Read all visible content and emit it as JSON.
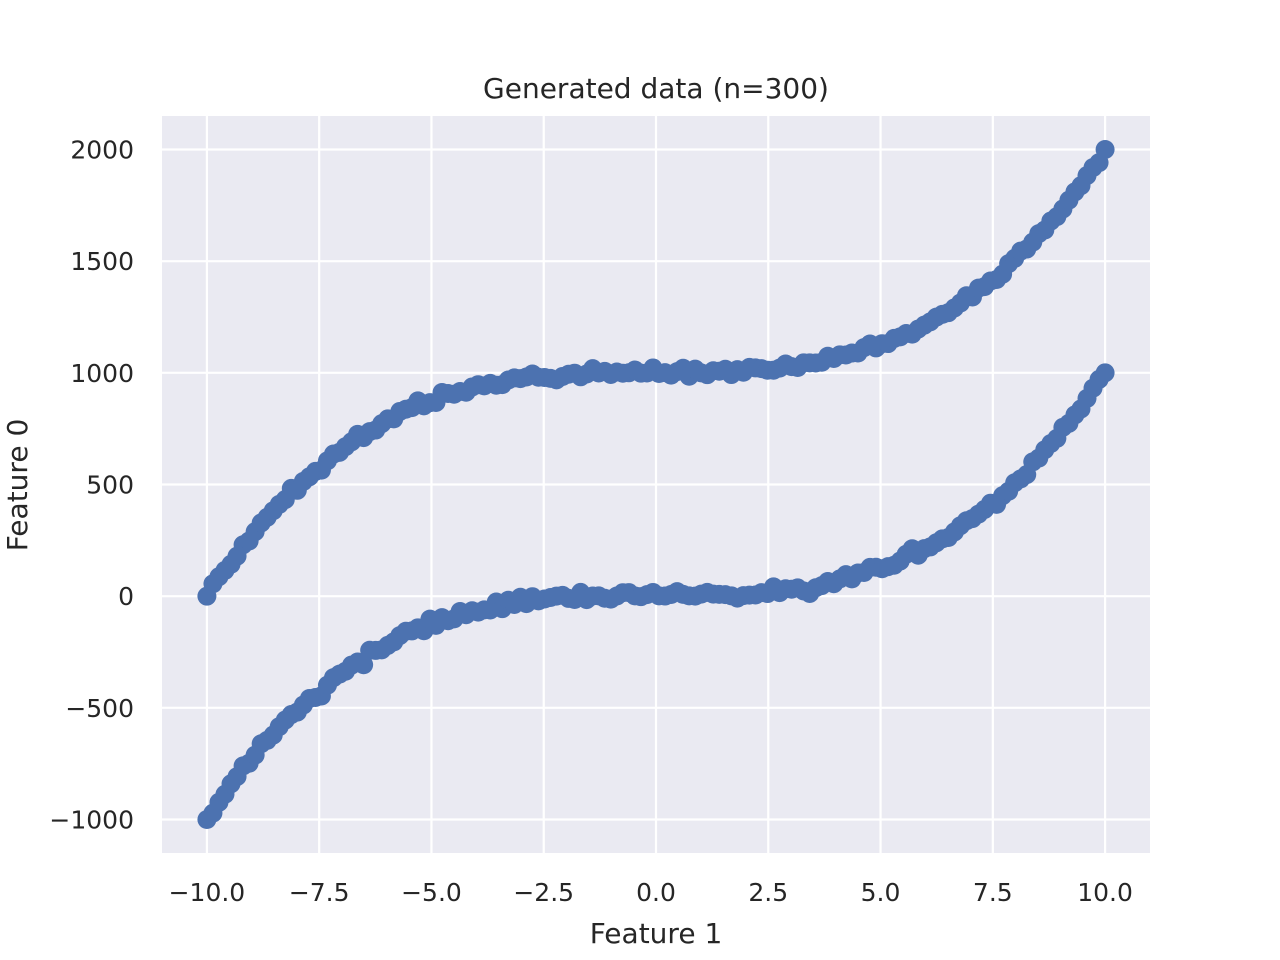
{
  "chart_data": {
    "type": "scatter",
    "title": "Generated data (n=300)",
    "xlabel": "Feature 1",
    "ylabel": "Feature 0",
    "xlim": [
      -11.0,
      11.0
    ],
    "ylim": [
      -1150,
      2150
    ],
    "x_ticks": [
      -10.0,
      -7.5,
      -5.0,
      -2.5,
      0.0,
      2.5,
      5.0,
      7.5,
      10.0
    ],
    "x_tick_labels": [
      "−10.0",
      "−7.5",
      "−5.0",
      "−2.5",
      "0.0",
      "2.5",
      "5.0",
      "7.5",
      "10.0"
    ],
    "y_ticks": [
      -1000,
      -500,
      0,
      500,
      1000,
      1500,
      2000
    ],
    "y_tick_labels": [
      "−1000",
      "−500",
      "0",
      "500",
      "1000",
      "1500",
      "2000"
    ],
    "grid": true,
    "point_color": "#4c72b0",
    "background_color": "#eaeaf2",
    "series": [
      {
        "n_points": 150,
        "x_range": [
          -10.0,
          10.0
        ],
        "offset": 0,
        "formula": "y = x^3"
      },
      {
        "n_points": 150,
        "x_range": [
          -10.0,
          10.0
        ],
        "offset": 1000,
        "formula": "y = x^3 + 1000"
      }
    ]
  }
}
